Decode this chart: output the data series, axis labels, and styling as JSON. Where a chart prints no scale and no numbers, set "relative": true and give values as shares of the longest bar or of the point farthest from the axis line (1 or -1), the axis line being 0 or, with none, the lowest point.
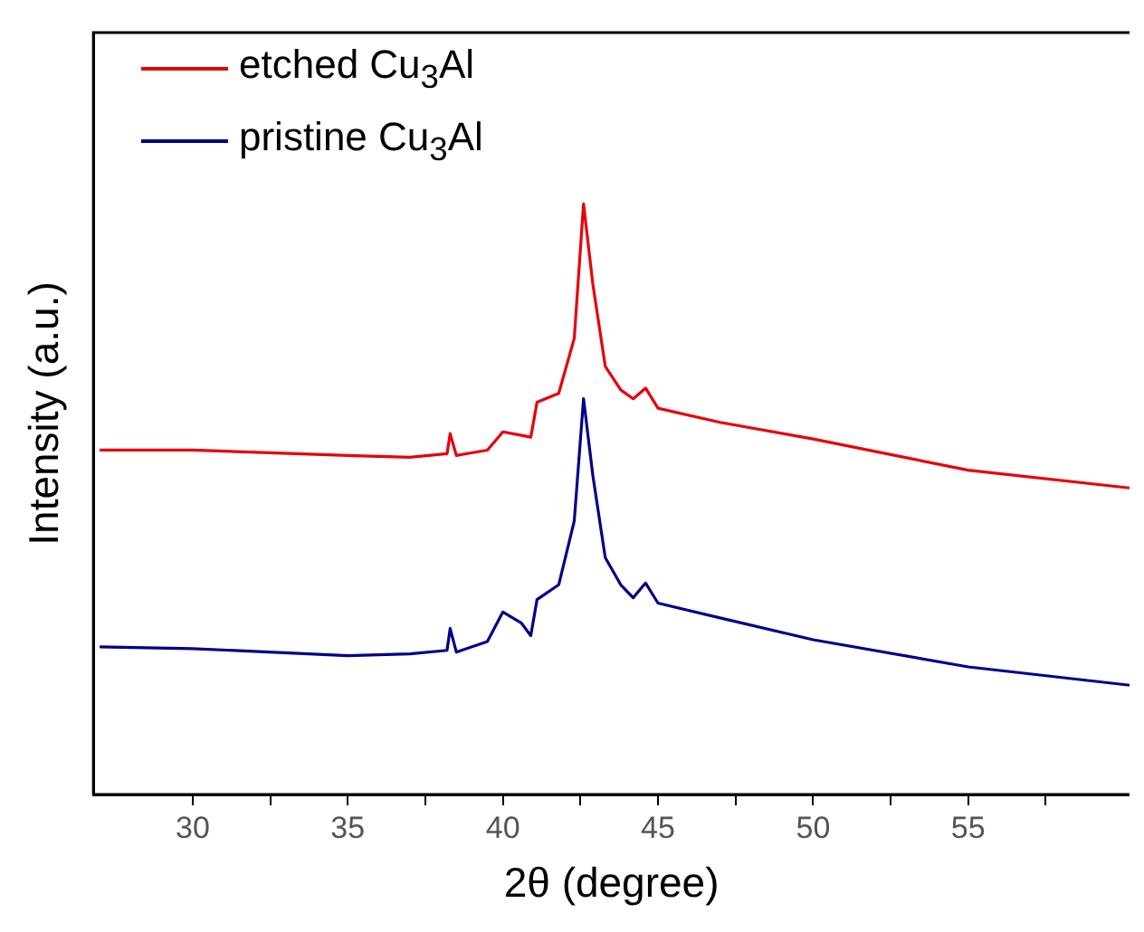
{
  "chart_data": {
    "type": "line",
    "xlabel": "2θ (degree)",
    "ylabel": "Intensity (a.u.)",
    "relative": true,
    "xlim": [
      26.8,
      60.2
    ],
    "xticks": [
      30,
      {
        "value": 32.5,
        "label": null
      },
      35,
      {
        "value": 37.5,
        "label": null
      },
      40,
      {
        "value": 42.5,
        "label": null
      },
      45,
      {
        "value": 47.5,
        "label": null
      },
      50,
      {
        "value": 52.5,
        "label": null
      },
      55,
      {
        "value": 57.5,
        "label": null
      }
    ],
    "grid": false,
    "legend": "top left",
    "marker": "none",
    "line_style": "solid",
    "x": [
      27,
      30,
      35,
      37,
      38.2,
      38.3,
      38.5,
      39.5,
      40.0,
      40.6,
      40.9,
      41.1,
      41.8,
      42.3,
      42.6,
      42.9,
      43.3,
      43.8,
      44.2,
      44.6,
      45.0,
      47,
      50,
      55,
      60.2
    ],
    "series": [
      {
        "name": "etched Cu$_{3}$Al",
        "color": "#e8000b",
        "values": [
          0.583,
          0.583,
          0.574,
          0.571,
          0.577,
          0.611,
          0.574,
          0.583,
          0.614,
          0.608,
          0.605,
          0.664,
          0.679,
          0.772,
          1,
          0.864,
          0.725,
          0.685,
          0.67,
          0.688,
          0.654,
          0.63,
          0.602,
          0.549,
          0.519
        ]
      },
      {
        "name": "pristine Cu$_{3}$Al",
        "color": "#00008b",
        "values": [
          0.25,
          0.247,
          0.235,
          0.238,
          0.244,
          0.281,
          0.241,
          0.259,
          0.309,
          0.29,
          0.269,
          0.33,
          0.355,
          0.463,
          0.67,
          0.54,
          0.401,
          0.355,
          0.333,
          0.358,
          0.324,
          0.299,
          0.262,
          0.216,
          0.185
        ]
      }
    ]
  }
}
